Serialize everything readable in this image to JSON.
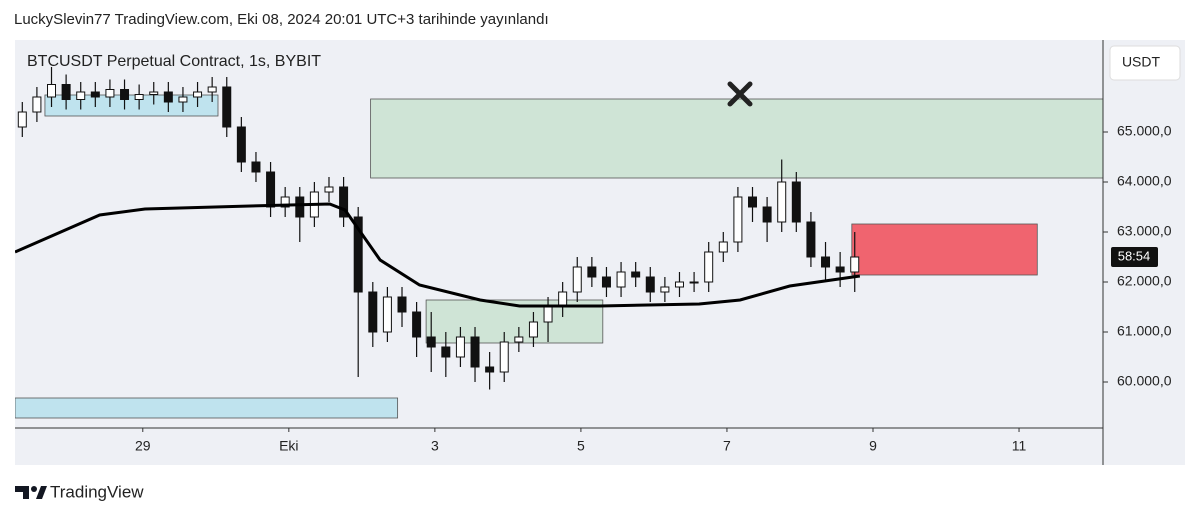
{
  "header": {
    "title": "LuckySlevin77 TradingView.com, Eki 08, 2024 20:01 UTC+3 tarihinde yayınlandı"
  },
  "chart_data": {
    "type": "candlestick",
    "title": "BTCUSDT Perpetual Contract, 1s, BYBIT",
    "currency_label": "USDT",
    "countdown": "58:54",
    "x": [
      27.35,
      27.55,
      27.75,
      27.95,
      28.15,
      28.35,
      28.55,
      28.75,
      28.95,
      29.15,
      29.35,
      29.55,
      29.75,
      29.95,
      30.15,
      30.35,
      30.55,
      30.75,
      30.95,
      31.15,
      31.35,
      31.55,
      31.75,
      31.95,
      32.15,
      32.35,
      32.55,
      32.75,
      32.95,
      33.15,
      33.35,
      33.55,
      33.75,
      33.95,
      34.15,
      34.35,
      34.55,
      34.75,
      34.95,
      35.15,
      35.35,
      35.55,
      35.75,
      35.95,
      36.15,
      36.35,
      36.55,
      36.75,
      36.95,
      37.15,
      37.35,
      37.55,
      37.75,
      37.95,
      38.15,
      38.35,
      38.55,
      38.75
    ],
    "open": [
      65100,
      65400,
      65700,
      65950,
      65650,
      65800,
      65700,
      65850,
      65650,
      65750,
      65800,
      65600,
      65700,
      65800,
      65900,
      65100,
      64400,
      64200,
      63500,
      63700,
      63300,
      63800,
      63900,
      63300,
      61800,
      61000,
      61700,
      61400,
      60900,
      60700,
      60500,
      60900,
      60300,
      60200,
      60800,
      60900,
      61200,
      61500,
      61800,
      62300,
      62100,
      61900,
      62200,
      62100,
      61800,
      61900,
      62000,
      62000,
      62600,
      62800,
      63700,
      63500,
      63200,
      64000,
      63200,
      62500,
      62300,
      62200
    ],
    "high": [
      65600,
      65900,
      66300,
      66150,
      66000,
      66000,
      66050,
      66050,
      65950,
      66000,
      66000,
      65900,
      66000,
      66100,
      66100,
      65300,
      64600,
      64400,
      63900,
      63900,
      64000,
      64100,
      64100,
      63500,
      62000,
      61900,
      61900,
      61600,
      61400,
      61000,
      61100,
      61100,
      60600,
      61000,
      61100,
      61400,
      61700,
      62000,
      62500,
      62500,
      62300,
      62400,
      62400,
      62300,
      62100,
      62200,
      62200,
      62800,
      63000,
      63900,
      63900,
      63700,
      64450,
      64200,
      63400,
      62800,
      62600,
      63000
    ],
    "low": [
      64900,
      65200,
      65500,
      65450,
      65450,
      65500,
      65500,
      65450,
      65450,
      65550,
      65400,
      65400,
      65500,
      65600,
      64900,
      64200,
      64000,
      63300,
      63300,
      62800,
      63100,
      63600,
      63100,
      60100,
      60700,
      60800,
      61100,
      60500,
      60200,
      60100,
      60300,
      60000,
      59850,
      60000,
      60600,
      60700,
      60800,
      61300,
      61600,
      61900,
      61700,
      61700,
      61900,
      61600,
      61600,
      61700,
      61800,
      61800,
      62400,
      62600,
      63200,
      62800,
      63000,
      63000,
      62300,
      62000,
      61900,
      61800
    ],
    "close": [
      65400,
      65700,
      65950,
      65650,
      65800,
      65700,
      65850,
      65650,
      65750,
      65800,
      65600,
      65700,
      65800,
      65900,
      65100,
      64400,
      64200,
      63500,
      63700,
      63300,
      63800,
      63900,
      63300,
      61800,
      61000,
      61700,
      61400,
      60900,
      60700,
      60500,
      60900,
      60300,
      60200,
      60800,
      60900,
      61200,
      61500,
      61800,
      62300,
      62100,
      61900,
      62200,
      62100,
      61800,
      61900,
      62000,
      62000,
      62600,
      62800,
      63700,
      63500,
      63200,
      64000,
      63200,
      62500,
      62300,
      62200,
      62500
    ],
    "ma": {
      "color": "#000000",
      "x": [
        27.25,
        28.41,
        29.03,
        30.47,
        31.56,
        31.77,
        32.25,
        32.79,
        33.62,
        34.16,
        35.26,
        36.62,
        37.18,
        37.86,
        38.82
      ],
      "values": [
        62600,
        63340,
        63460,
        63520,
        63560,
        63440,
        62440,
        61940,
        61640,
        61520,
        61520,
        61560,
        61640,
        61920,
        62120
      ]
    },
    "zones": [
      {
        "x": [
          27.66,
          30.03
        ],
        "y": [
          65320,
          65740
        ],
        "color": "#bfe3ee"
      },
      {
        "x": [
          32.12,
          42.15
        ],
        "y": [
          64080,
          65660
        ],
        "color": "#cfe4d6"
      },
      {
        "x": [
          38.71,
          41.25
        ],
        "y": [
          62140,
          63160
        ],
        "color": "#f0646f"
      },
      {
        "x": [
          32.88,
          35.3
        ],
        "y": [
          60780,
          61640
        ],
        "color": "#cfe4d6"
      },
      {
        "x": [
          27.25,
          32.49
        ],
        "y": [
          59280,
          59680
        ],
        "color": "#bfe3ee"
      }
    ],
    "xlim": [
      27.25,
      42.15
    ],
    "ylim": [
      59080,
      66840
    ],
    "xticks": [
      {
        "value": 29,
        "label": "29"
      },
      {
        "value": 31,
        "label": "Eki"
      },
      {
        "value": 33,
        "label": "3"
      },
      {
        "value": 35,
        "label": "5"
      },
      {
        "value": 37,
        "label": "7"
      },
      {
        "value": 39,
        "label": "9"
      },
      {
        "value": 41,
        "label": "11"
      }
    ],
    "yticks": [
      {
        "value": 60000,
        "label": "60.000,0"
      },
      {
        "value": 61000,
        "label": "61.000,0"
      },
      {
        "value": 62000,
        "label": "62.000,0"
      },
      {
        "value": 63000,
        "label": "63.000,0"
      },
      {
        "value": 64000,
        "label": "64.000,0"
      },
      {
        "value": 65000,
        "label": "65.000,0"
      }
    ],
    "up_color": "#ffffff",
    "down_color": "#111111"
  },
  "footer": {
    "brand": "TradingView"
  }
}
